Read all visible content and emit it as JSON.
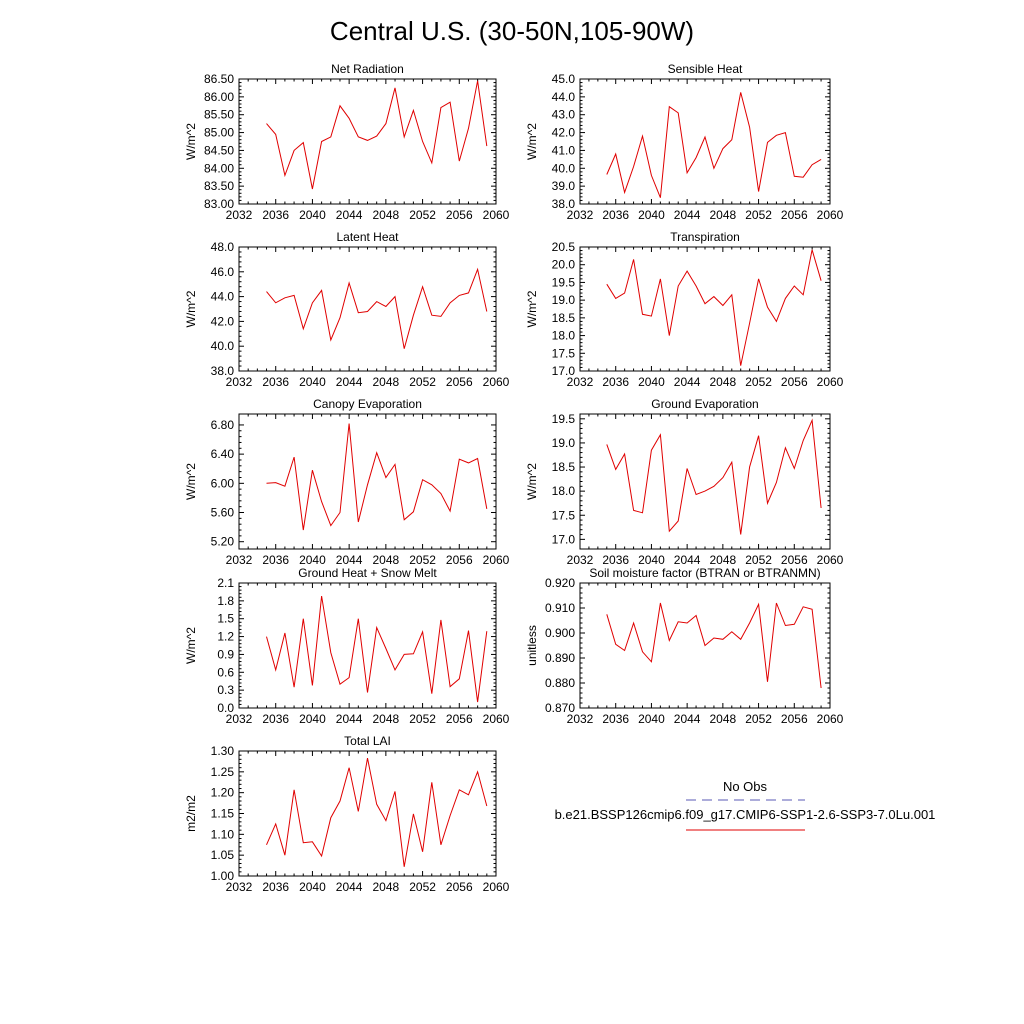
{
  "figure": {
    "title": "Central U.S. (30-50N,105-90W)"
  },
  "legend": {
    "items": [
      {
        "label": "No Obs",
        "color": "#5a5ab4",
        "style": "dashed"
      },
      {
        "label": "b.e21.BSSP126cmip6.f09_g17.CMIP6-SSP1-2.6-SSP3-7.0Lu.001",
        "color": "#e00000",
        "style": "solid"
      }
    ]
  },
  "chart_data": [
    {
      "type": "line",
      "title": "Net Radiation",
      "ylabel": "W/m^2",
      "xlim": [
        2032,
        2060
      ],
      "ylim": [
        83.0,
        86.5
      ],
      "xticks": [
        "2032",
        "2036",
        "2040",
        "2044",
        "2048",
        "2052",
        "2056",
        "2060"
      ],
      "yticks": [
        "83.00",
        "83.50",
        "84.00",
        "84.50",
        "85.00",
        "85.50",
        "86.00",
        "86.50"
      ],
      "x": [
        2035,
        2036,
        2037,
        2038,
        2039,
        2040,
        2041,
        2042,
        2043,
        2044,
        2045,
        2046,
        2047,
        2048,
        2049,
        2050,
        2051,
        2052,
        2053,
        2054,
        2055,
        2056,
        2057,
        2058,
        2059
      ],
      "series": [
        {
          "color": "#e00000",
          "values": [
            85.25,
            84.95,
            83.8,
            84.5,
            84.72,
            83.42,
            84.75,
            84.88,
            85.75,
            85.4,
            84.88,
            84.78,
            84.9,
            85.25,
            86.25,
            84.88,
            85.62,
            84.75,
            84.15,
            85.7,
            85.85,
            84.2,
            85.12,
            86.45,
            84.62
          ]
        }
      ]
    },
    {
      "type": "line",
      "title": "Sensible Heat",
      "ylabel": "W/m^2",
      "xlim": [
        2032,
        2060
      ],
      "ylim": [
        38.0,
        45.0
      ],
      "xticks": [
        "2032",
        "2036",
        "2040",
        "2044",
        "2048",
        "2052",
        "2056",
        "2060"
      ],
      "yticks": [
        "38.0",
        "39.0",
        "40.0",
        "41.0",
        "42.0",
        "43.0",
        "44.0",
        "45.0"
      ],
      "x": [
        2035,
        2036,
        2037,
        2038,
        2039,
        2040,
        2041,
        2042,
        2043,
        2044,
        2045,
        2046,
        2047,
        2048,
        2049,
        2050,
        2051,
        2052,
        2053,
        2054,
        2055,
        2056,
        2057,
        2058,
        2059
      ],
      "series": [
        {
          "color": "#e00000",
          "values": [
            39.65,
            40.8,
            38.65,
            40.1,
            41.8,
            39.6,
            38.35,
            43.45,
            43.1,
            39.75,
            40.6,
            41.75,
            40.0,
            41.1,
            41.6,
            44.25,
            42.3,
            38.7,
            41.45,
            41.85,
            42.0,
            39.55,
            39.5,
            40.2,
            40.5
          ]
        }
      ]
    },
    {
      "type": "line",
      "title": "Latent Heat",
      "ylabel": "W/m^2",
      "xlim": [
        2032,
        2060
      ],
      "ylim": [
        38.0,
        48.0
      ],
      "xticks": [
        "2032",
        "2036",
        "2040",
        "2044",
        "2048",
        "2052",
        "2056",
        "2060"
      ],
      "yticks": [
        "38.0",
        "40.0",
        "42.0",
        "44.0",
        "46.0",
        "48.0"
      ],
      "x": [
        2035,
        2036,
        2037,
        2038,
        2039,
        2040,
        2041,
        2042,
        2043,
        2044,
        2045,
        2046,
        2047,
        2048,
        2049,
        2050,
        2051,
        2052,
        2053,
        2054,
        2055,
        2056,
        2057,
        2058,
        2059
      ],
      "series": [
        {
          "color": "#e00000",
          "values": [
            44.4,
            43.5,
            43.9,
            44.1,
            41.4,
            43.5,
            44.5,
            40.5,
            42.3,
            45.1,
            42.7,
            42.8,
            43.6,
            43.2,
            44.0,
            39.8,
            42.5,
            44.8,
            42.5,
            42.4,
            43.5,
            44.1,
            44.3,
            46.2,
            42.8
          ]
        }
      ]
    },
    {
      "type": "line",
      "title": "Transpiration",
      "ylabel": "W/m^2",
      "xlim": [
        2032,
        2060
      ],
      "ylim": [
        17.0,
        20.5
      ],
      "xticks": [
        "2032",
        "2036",
        "2040",
        "2044",
        "2048",
        "2052",
        "2056",
        "2060"
      ],
      "yticks": [
        "17.0",
        "17.5",
        "18.0",
        "18.5",
        "19.0",
        "19.5",
        "20.0",
        "20.5"
      ],
      "x": [
        2035,
        2036,
        2037,
        2038,
        2039,
        2040,
        2041,
        2042,
        2043,
        2044,
        2045,
        2046,
        2047,
        2048,
        2049,
        2050,
        2051,
        2052,
        2053,
        2054,
        2055,
        2056,
        2057,
        2058,
        2059
      ],
      "series": [
        {
          "color": "#e00000",
          "values": [
            19.45,
            19.05,
            19.2,
            20.15,
            18.6,
            18.55,
            19.6,
            18.0,
            19.4,
            19.82,
            19.4,
            18.9,
            19.1,
            18.85,
            19.15,
            17.15,
            18.35,
            19.6,
            18.8,
            18.4,
            19.05,
            19.4,
            19.15,
            20.42,
            19.55
          ]
        }
      ]
    },
    {
      "type": "line",
      "title": "Canopy Evaporation",
      "ylabel": "W/m^2",
      "xlim": [
        2032,
        2060
      ],
      "ylim": [
        5.1,
        6.95
      ],
      "xticks": [
        "2032",
        "2036",
        "2040",
        "2044",
        "2048",
        "2052",
        "2056",
        "2060"
      ],
      "yticks": [
        "5.20",
        "5.60",
        "6.00",
        "6.40",
        "6.80"
      ],
      "x": [
        2035,
        2036,
        2037,
        2038,
        2039,
        2040,
        2041,
        2042,
        2043,
        2044,
        2045,
        2046,
        2047,
        2048,
        2049,
        2050,
        2051,
        2052,
        2053,
        2054,
        2055,
        2056,
        2057,
        2058,
        2059
      ],
      "series": [
        {
          "color": "#e00000",
          "values": [
            6.0,
            6.01,
            5.96,
            6.36,
            5.36,
            6.18,
            5.75,
            5.42,
            5.6,
            6.82,
            5.47,
            5.98,
            6.42,
            6.08,
            6.26,
            5.5,
            5.61,
            6.05,
            5.98,
            5.86,
            5.62,
            6.33,
            6.28,
            6.34,
            5.65
          ]
        }
      ]
    },
    {
      "type": "line",
      "title": "Ground Evaporation",
      "ylabel": "W/m^2",
      "xlim": [
        2032,
        2060
      ],
      "ylim": [
        16.8,
        19.6
      ],
      "xticks": [
        "2032",
        "2036",
        "2040",
        "2044",
        "2048",
        "2052",
        "2056",
        "2060"
      ],
      "yticks": [
        "17.0",
        "17.5",
        "18.0",
        "18.5",
        "19.0",
        "19.5"
      ],
      "x": [
        2035,
        2036,
        2037,
        2038,
        2039,
        2040,
        2041,
        2042,
        2043,
        2044,
        2045,
        2046,
        2047,
        2048,
        2049,
        2050,
        2051,
        2052,
        2053,
        2054,
        2055,
        2056,
        2057,
        2058,
        2059
      ],
      "series": [
        {
          "color": "#e00000",
          "values": [
            18.97,
            18.45,
            18.77,
            17.6,
            17.55,
            18.85,
            19.17,
            17.17,
            17.38,
            18.47,
            17.93,
            18.0,
            18.1,
            18.28,
            18.6,
            17.1,
            18.5,
            19.15,
            17.75,
            18.18,
            18.9,
            18.47,
            19.05,
            19.47,
            17.65
          ]
        }
      ]
    },
    {
      "type": "line",
      "title": "Ground Heat + Snow Melt",
      "ylabel": "W/m^2",
      "xlim": [
        2032,
        2060
      ],
      "ylim": [
        0.0,
        2.1
      ],
      "xticks": [
        "2032",
        "2036",
        "2040",
        "2044",
        "2048",
        "2052",
        "2056",
        "2060"
      ],
      "yticks": [
        "0.0",
        "0.3",
        "0.6",
        "0.9",
        "1.2",
        "1.5",
        "1.8",
        "2.1"
      ],
      "x": [
        2035,
        2036,
        2037,
        2038,
        2039,
        2040,
        2041,
        2042,
        2043,
        2044,
        2045,
        2046,
        2047,
        2048,
        2049,
        2050,
        2051,
        2052,
        2053,
        2054,
        2055,
        2056,
        2057,
        2058,
        2059
      ],
      "series": [
        {
          "color": "#e00000",
          "values": [
            1.2,
            0.64,
            1.26,
            0.35,
            1.5,
            0.38,
            1.88,
            0.93,
            0.4,
            0.51,
            1.5,
            0.26,
            1.35,
            1.0,
            0.64,
            0.9,
            0.91,
            1.28,
            0.24,
            1.48,
            0.36,
            0.49,
            1.3,
            0.1,
            1.29
          ]
        }
      ]
    },
    {
      "type": "line",
      "title": "Soil moisture factor (BTRAN or BTRANMN)",
      "ylabel": "unitless",
      "xlim": [
        2032,
        2060
      ],
      "ylim": [
        0.87,
        0.92
      ],
      "xticks": [
        "2032",
        "2036",
        "2040",
        "2044",
        "2048",
        "2052",
        "2056",
        "2060"
      ],
      "yticks": [
        "0.870",
        "0.880",
        "0.890",
        "0.900",
        "0.910",
        "0.920"
      ],
      "x": [
        2035,
        2036,
        2037,
        2038,
        2039,
        2040,
        2041,
        2042,
        2043,
        2044,
        2045,
        2046,
        2047,
        2048,
        2049,
        2050,
        2051,
        2052,
        2053,
        2054,
        2055,
        2056,
        2057,
        2058,
        2059
      ],
      "series": [
        {
          "color": "#e00000",
          "values": [
            0.9075,
            0.8955,
            0.893,
            0.904,
            0.8925,
            0.8885,
            0.912,
            0.897,
            0.9045,
            0.904,
            0.907,
            0.895,
            0.898,
            0.8975,
            0.9005,
            0.8975,
            0.904,
            0.9115,
            0.8805,
            0.912,
            0.903,
            0.9035,
            0.9105,
            0.9095,
            0.878
          ]
        }
      ]
    },
    {
      "type": "line",
      "title": "Total LAI",
      "ylabel": "m2/m2",
      "xlim": [
        2032,
        2060
      ],
      "ylim": [
        1.0,
        1.3
      ],
      "xticks": [
        "2032",
        "2036",
        "2040",
        "2044",
        "2048",
        "2052",
        "2056",
        "2060"
      ],
      "yticks": [
        "1.00",
        "1.05",
        "1.10",
        "1.15",
        "1.20",
        "1.25",
        "1.30"
      ],
      "x": [
        2035,
        2036,
        2037,
        2038,
        2039,
        2040,
        2041,
        2042,
        2043,
        2044,
        2045,
        2046,
        2047,
        2048,
        2049,
        2050,
        2051,
        2052,
        2053,
        2054,
        2055,
        2056,
        2057,
        2058,
        2059
      ],
      "series": [
        {
          "color": "#e00000",
          "values": [
            1.075,
            1.125,
            1.05,
            1.207,
            1.08,
            1.082,
            1.048,
            1.14,
            1.18,
            1.26,
            1.155,
            1.283,
            1.172,
            1.133,
            1.203,
            1.022,
            1.149,
            1.058,
            1.225,
            1.075,
            1.145,
            1.207,
            1.195,
            1.25,
            1.168
          ]
        }
      ]
    }
  ]
}
